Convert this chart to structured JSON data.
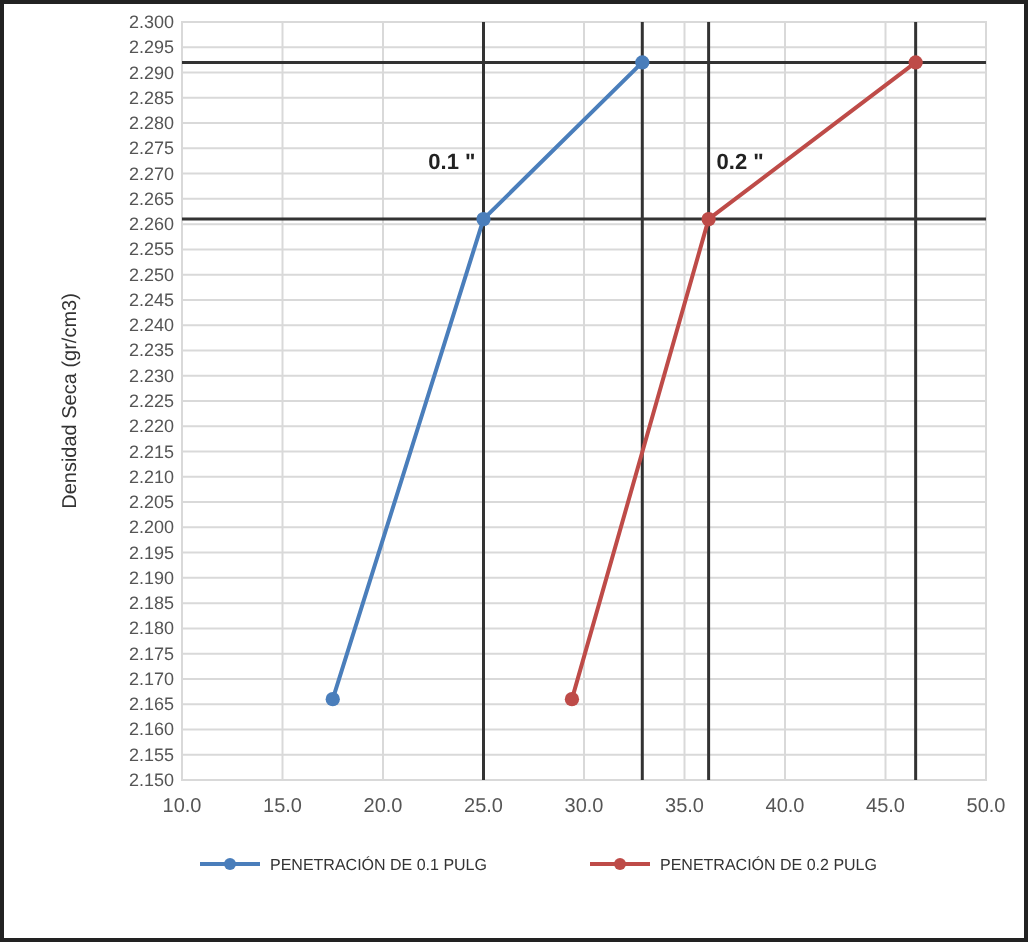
{
  "chart_data": {
    "type": "line",
    "ylabel": "Densidad Seca (gr/cm3)",
    "series": [
      {
        "name": "PENETRACIÓN DE 0.1 PULG",
        "color": "#4a7ebb",
        "x": [
          17.5,
          25.0,
          32.9
        ],
        "values": [
          2.166,
          2.261,
          2.292
        ]
      },
      {
        "name": "PENETRACIÓN DE 0.2 PULG",
        "color": "#be4b48",
        "x": [
          29.4,
          36.2,
          46.5
        ],
        "values": [
          2.166,
          2.261,
          2.292
        ]
      }
    ],
    "xlim": [
      10,
      50
    ],
    "xticks": [
      {
        "value": 10,
        "label": "10.0"
      },
      {
        "value": 15,
        "label": "15.0"
      },
      {
        "value": 20,
        "label": "20.0"
      },
      {
        "value": 25,
        "label": "25.0"
      },
      {
        "value": 30,
        "label": "30.0"
      },
      {
        "value": 35,
        "label": "35.0"
      },
      {
        "value": 40,
        "label": "40.0"
      },
      {
        "value": 45,
        "label": "45.0"
      },
      {
        "value": 50,
        "label": "50.0"
      }
    ],
    "ylim": [
      2.15,
      2.3
    ],
    "yticks": [
      {
        "value": 2.15,
        "label": "2.150"
      },
      {
        "value": 2.155,
        "label": "2.155"
      },
      {
        "value": 2.16,
        "label": "2.160"
      },
      {
        "value": 2.165,
        "label": "2.165"
      },
      {
        "value": 2.17,
        "label": "2.170"
      },
      {
        "value": 2.175,
        "label": "2.175"
      },
      {
        "value": 2.18,
        "label": "2.180"
      },
      {
        "value": 2.185,
        "label": "2.185"
      },
      {
        "value": 2.19,
        "label": "2.190"
      },
      {
        "value": 2.195,
        "label": "2.195"
      },
      {
        "value": 2.2,
        "label": "2.200"
      },
      {
        "value": 2.205,
        "label": "2.205"
      },
      {
        "value": 2.21,
        "label": "2.210"
      },
      {
        "value": 2.215,
        "label": "2.215"
      },
      {
        "value": 2.22,
        "label": "2.220"
      },
      {
        "value": 2.225,
        "label": "2.225"
      },
      {
        "value": 2.23,
        "label": "2.230"
      },
      {
        "value": 2.235,
        "label": "2.235"
      },
      {
        "value": 2.24,
        "label": "2.240"
      },
      {
        "value": 2.245,
        "label": "2.245"
      },
      {
        "value": 2.25,
        "label": "2.250"
      },
      {
        "value": 2.255,
        "label": "2.255"
      },
      {
        "value": 2.26,
        "label": "2.260"
      },
      {
        "value": 2.265,
        "label": "2.265"
      },
      {
        "value": 2.27,
        "label": "2.270"
      },
      {
        "value": 2.275,
        "label": "2.275"
      },
      {
        "value": 2.28,
        "label": "2.280"
      },
      {
        "value": 2.285,
        "label": "2.285"
      },
      {
        "value": 2.29,
        "label": "2.290"
      },
      {
        "value": 2.295,
        "label": "2.295"
      },
      {
        "value": 2.3,
        "label": "2.300"
      }
    ],
    "ref_lines": [
      {
        "axis": "y",
        "value": 2.292,
        "color": "#333333"
      },
      {
        "axis": "y",
        "value": 2.261,
        "color": "#333333"
      },
      {
        "axis": "x",
        "value": 25.0,
        "color": "#333333"
      },
      {
        "axis": "x",
        "value": 32.9,
        "color": "#333333"
      },
      {
        "axis": "x",
        "value": 36.2,
        "color": "#333333"
      },
      {
        "axis": "x",
        "value": 46.5,
        "color": "#333333"
      }
    ],
    "annotations": [
      "0.1 \"",
      "0.2 \""
    ],
    "grid": true,
    "legend": "bottom",
    "marker": "circle",
    "line_style": "solid"
  }
}
